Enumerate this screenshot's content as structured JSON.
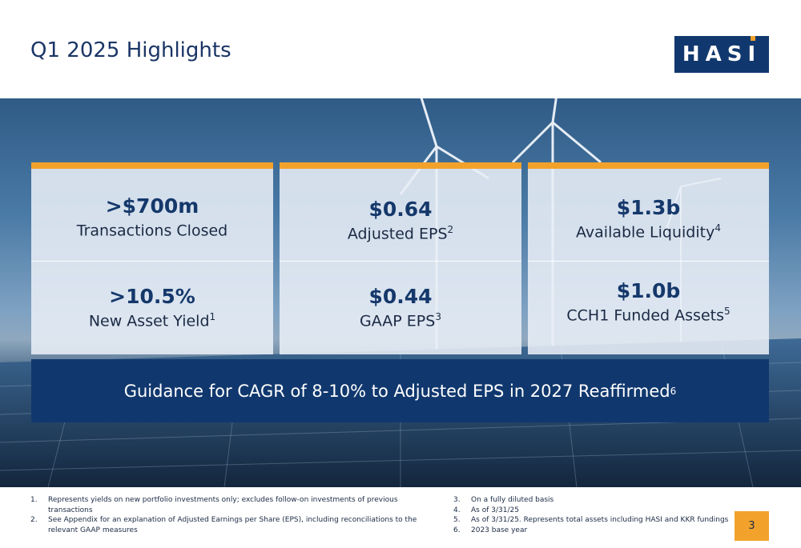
{
  "title": "Q1 2025 Highlights",
  "logo_text": "HASI",
  "colors": {
    "navy": "#11386e",
    "accent": "#f2a22b",
    "title": "#1a3566"
  },
  "cards": [
    {
      "top": {
        "value": ">$700m",
        "label": "Transactions Closed",
        "sup": ""
      },
      "bottom": {
        "value": ">10.5%",
        "label": "New Asset Yield",
        "sup": "1"
      }
    },
    {
      "top": {
        "value": "$0.64",
        "label": "Adjusted EPS",
        "sup": "2"
      },
      "bottom": {
        "value": "$0.44",
        "label": "GAAP EPS",
        "sup": "3"
      }
    },
    {
      "top": {
        "value": "$1.3b",
        "label": "Available Liquidity",
        "sup": "4"
      },
      "bottom": {
        "value": "$1.0b",
        "label": "CCH1 Funded Assets",
        "sup": "5"
      }
    }
  ],
  "guidance": {
    "text": "Guidance for CAGR of 8-10% to Adjusted EPS in 2027 Reaffirmed",
    "sup": "6"
  },
  "footnotes_left": [
    {
      "n": "1.",
      "text": "Represents yields on new portfolio investments only; excludes follow-on investments of previous transactions"
    },
    {
      "n": "2.",
      "text": "See Appendix for an explanation of Adjusted Earnings per Share (EPS), including reconciliations to the relevant GAAP measures"
    }
  ],
  "footnotes_right": [
    {
      "n": "3.",
      "text": "On a fully diluted basis"
    },
    {
      "n": "4.",
      "text": "As of 3/31/25"
    },
    {
      "n": "5.",
      "text": "As of 3/31/25. Represents total assets including HASI and KKR fundings"
    },
    {
      "n": "6.",
      "text": "2023 base year"
    }
  ],
  "page_number": "3"
}
